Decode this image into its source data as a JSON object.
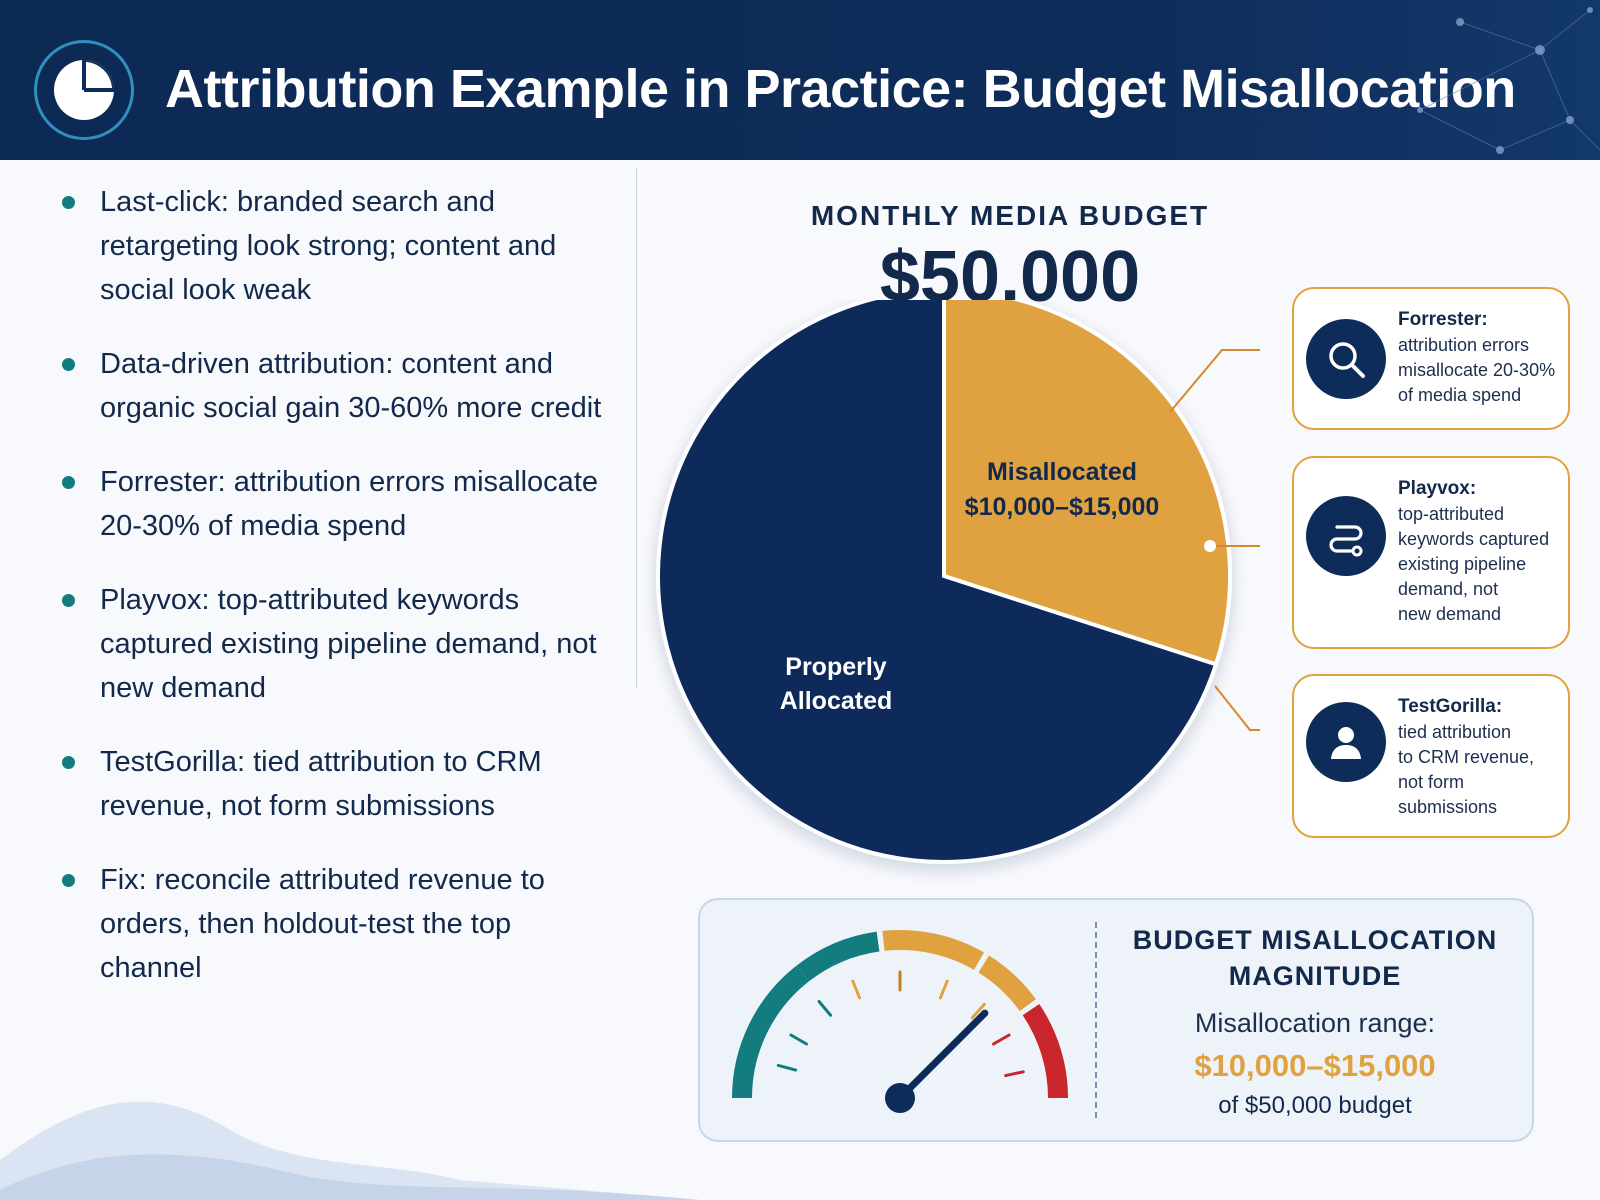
{
  "header": {
    "title": "Attribution Example in Practice: Budget Misallocation",
    "logo_icon": "pie-chart-icon"
  },
  "bullets": [
    "Last-click: branded search and retargeting look strong; content and social look weak",
    "Data-driven attribution: content and organic social gain 30-60% more credit",
    "Forrester: attribution errors misallocate 20-30% of media spend",
    "Playvox:  top-attributed keywords captured existing pipeline demand, not new demand",
    "TestGorilla: tied attribution to CRM revenue, not form submissions",
    "Fix:  reconcile attributed revenue to orders, then holdout-test the top channel"
  ],
  "budget": {
    "label": "MONTHLY MEDIA BUDGET",
    "value": "$50,000"
  },
  "chart_data": {
    "type": "pie",
    "total": 50000,
    "slices": [
      {
        "label_line1": "Misallocated",
        "label_line2": "$10,000–$15,000",
        "share": 0.3,
        "color": "#e0a23f"
      },
      {
        "label_line1": "Properly",
        "label_line2": "Allocated",
        "share": 0.7,
        "color": "#0e2c5a"
      }
    ]
  },
  "callouts": [
    {
      "title": "Forrester:",
      "body": [
        "attribution errors",
        "misallocate 20-30%",
        "of media spend"
      ],
      "icon": "search-icon"
    },
    {
      "title": "Playvox:",
      "body": [
        "top-attributed",
        "keywords captured",
        "existing pipeline",
        "demand, not",
        "new demand"
      ],
      "icon": "route-icon"
    },
    {
      "title": "TestGorilla:",
      "body": [
        "tied attribution",
        "to CRM revenue,",
        "not form",
        "submissions"
      ],
      "icon": "user-icon"
    }
  ],
  "gauge": {
    "title_line1": "BUDGET MISALLOCATION",
    "title_line2": "MAGNITUDE",
    "range_label": "Misallocation range:",
    "range_value": "$10,000–$15,000",
    "of_text": "of $50,000 budget",
    "level": 0.75
  },
  "colors": {
    "navy": "#0e2c5a",
    "gold": "#e0a23f",
    "teal": "#127c7e",
    "red": "#c9252c"
  }
}
